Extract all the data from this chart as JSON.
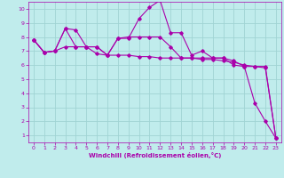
{
  "background_color": "#c0ecec",
  "grid_color": "#a0d4d4",
  "line_color": "#aa00aa",
  "tick_color": "#aa00aa",
  "xlabel": "Windchill (Refroidissement éolien,°C)",
  "ylim": [
    0.5,
    10.5
  ],
  "xlim": [
    -0.5,
    23.5
  ],
  "yticks": [
    1,
    2,
    3,
    4,
    5,
    6,
    7,
    8,
    9,
    10
  ],
  "xticks": [
    0,
    1,
    2,
    3,
    4,
    5,
    6,
    7,
    8,
    9,
    10,
    11,
    12,
    13,
    14,
    15,
    16,
    17,
    18,
    19,
    20,
    21,
    22,
    23
  ],
  "series": [
    {
      "x": [
        0,
        1,
        2,
        3,
        4,
        5,
        6,
        7,
        8,
        9,
        10,
        11,
        12,
        13,
        14,
        15,
        16,
        17,
        18,
        19,
        20,
        21,
        22,
        23
      ],
      "y": [
        7.8,
        6.9,
        7.0,
        8.6,
        8.5,
        7.3,
        7.3,
        6.7,
        7.9,
        7.9,
        9.3,
        10.1,
        10.6,
        8.3,
        8.3,
        6.7,
        7.0,
        6.5,
        6.5,
        6.0,
        5.9,
        3.3,
        2.0,
        0.8
      ]
    },
    {
      "x": [
        0,
        1,
        2,
        3,
        4,
        5,
        6,
        7,
        8,
        9,
        10,
        11,
        12,
        13,
        14,
        15,
        16,
        17,
        18,
        19,
        20,
        21,
        22,
        23
      ],
      "y": [
        7.8,
        6.9,
        7.0,
        7.3,
        7.3,
        7.3,
        6.8,
        6.7,
        6.7,
        6.7,
        6.6,
        6.6,
        6.5,
        6.5,
        6.5,
        6.5,
        6.4,
        6.4,
        6.3,
        6.2,
        6.0,
        5.9,
        5.8,
        0.8
      ]
    },
    {
      "x": [
        0,
        1,
        2,
        3,
        4,
        5,
        6,
        7,
        8,
        9,
        10,
        11,
        12,
        13,
        14,
        15,
        16,
        17,
        18,
        19,
        20,
        21,
        22,
        23
      ],
      "y": [
        7.8,
        6.9,
        7.0,
        8.6,
        7.3,
        7.3,
        7.3,
        6.7,
        7.9,
        8.0,
        8.0,
        8.0,
        8.0,
        7.3,
        6.5,
        6.5,
        6.5,
        6.5,
        6.5,
        6.3,
        5.9,
        5.9,
        5.9,
        0.8
      ]
    }
  ]
}
